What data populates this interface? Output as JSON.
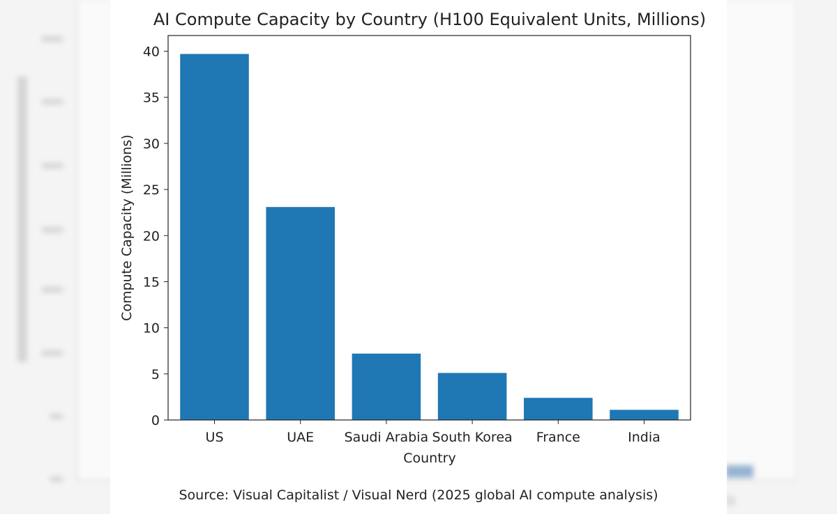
{
  "chart_data": {
    "type": "bar",
    "title": "AI Compute Capacity by Country (H100 Equivalent Units, Millions)",
    "xlabel": "Country",
    "ylabel": "Compute Capacity (Millions)",
    "categories": [
      "US",
      "UAE",
      "Saudi Arabia",
      "South Korea",
      "France",
      "India"
    ],
    "values": [
      39.7,
      23.1,
      7.2,
      5.1,
      2.4,
      1.1
    ],
    "ylim": [
      0,
      41.7
    ],
    "yticks": [
      0,
      5,
      10,
      15,
      20,
      25,
      30,
      35,
      40
    ],
    "bar_color": "#1f77b4",
    "grid": false,
    "legend": "none"
  },
  "source": "Source: Visual Capitalist / Visual Nerd (2025 global AI compute analysis)",
  "colors": {
    "page_background": "#f4f4f4",
    "card_background": "#ffffff",
    "axis": "#222222"
  }
}
